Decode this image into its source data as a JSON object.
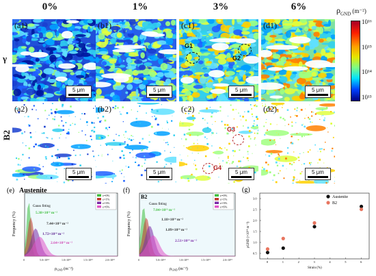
{
  "column_headers": [
    "0%",
    "1%",
    "3%",
    "6%"
  ],
  "row_labels": {
    "gamma": "γ",
    "b2": "B2"
  },
  "colorbar": {
    "title_main": "ρ",
    "title_sub": "GND",
    "title_unit": " (m⁻²)",
    "ticks": [
      "10¹⁶",
      "10¹⁵",
      "10¹⁴",
      "10¹³"
    ],
    "colors": [
      "#a50026",
      "#ff2000",
      "#ffa000",
      "#e6e600",
      "#80ff80",
      "#00e0ff",
      "#0040ff",
      "#000080"
    ]
  },
  "maps": {
    "top": [
      {
        "label": "(a1)",
        "scale": "5 μm"
      },
      {
        "label": "(b1)",
        "scale": "5 μm"
      },
      {
        "label": "(c1)",
        "scale": "5 μm"
      },
      {
        "label": "(d1)",
        "scale": "5 μm"
      }
    ],
    "bottom": [
      {
        "label": "(a2)",
        "scale": "5 μm"
      },
      {
        "label": "(b2)",
        "scale": "5 μm"
      },
      {
        "label": "(c2)",
        "scale": "5 μm"
      },
      {
        "label": "(d2)",
        "scale": "5 μm"
      }
    ]
  },
  "grain_markers": {
    "g1": "G1",
    "g2": "G2",
    "g3": "G3",
    "g4": "G4"
  },
  "panel_e": {
    "label": "(e)",
    "title": "Austenite",
    "fit_label": "Gauss fitting",
    "ylabel": "Frequency (%)",
    "xlabel_main": "ρ",
    "xlabel_sub": "GND",
    "xlabel_unit": " (m⁻²)",
    "xticks": [
      "0",
      "5.0×10¹⁴",
      "1.0×10¹⁵",
      "1.5×10¹⁵",
      "2.0×10¹⁵"
    ],
    "legend": [
      "ε=0%",
      "ε=1%",
      "ε=3%",
      "ε=6%"
    ],
    "annotations": [
      "5.38×10¹³ m⁻²",
      "7.44×10¹³ m⁻²",
      "1.72×10¹⁴ m⁻²",
      "2.64×10¹⁴ m⁻²"
    ]
  },
  "panel_f": {
    "label": "(f)",
    "title": "B2",
    "fit_label": "Gauss fitting",
    "ylabel": "Frequency (%)",
    "xlabel_main": "ρ",
    "xlabel_sub": "GND",
    "xlabel_unit": " (m⁻²)",
    "xticks": [
      "0",
      "5.0×10¹⁴",
      "1.0×10¹⁵",
      "1.5×10¹⁵",
      "2.0×10¹⁵"
    ],
    "legend": [
      "ε=0%",
      "ε=1%",
      "ε=3%",
      "ε=6%"
    ],
    "annotations": [
      "7.04×10¹³ m⁻²",
      "1.18×10¹⁴ m⁻²",
      "1.89×10¹⁴ m⁻²",
      "2.51×10¹⁴ m⁻²"
    ]
  },
  "panel_g": {
    "label": "(g)",
    "ylabel": "ρGND (×10¹⁴ m⁻²)",
    "xlabel": "Strain (%)",
    "xticks": [
      "0",
      "1",
      "2",
      "3",
      "4",
      "5",
      "6"
    ],
    "yticks": [
      "0.5",
      "1.0",
      "1.5",
      "2.0",
      "2.5",
      "3.0"
    ],
    "legend": [
      "Austenite",
      "B2"
    ]
  },
  "series_colors": {
    "s0": "#3fbf3f",
    "s1": "#c0392b",
    "s2": "#7b2ca8",
    "s3": "#e055c8"
  },
  "chart_data": {
    "type": "scatter",
    "x": [
      0,
      1,
      3,
      6
    ],
    "xlabel": "Strain (%)",
    "ylabel": "ρGND (×10¹⁴ m⁻²)",
    "xlim": [
      0,
      6
    ],
    "ylim": [
      0.5,
      3.0
    ],
    "series": [
      {
        "name": "Austenite",
        "values": [
          0.54,
          0.74,
          1.72,
          2.64
        ],
        "color": "#111111"
      },
      {
        "name": "B2",
        "values": [
          0.7,
          1.18,
          1.89,
          2.51
        ],
        "color": "#e8755f"
      }
    ]
  }
}
